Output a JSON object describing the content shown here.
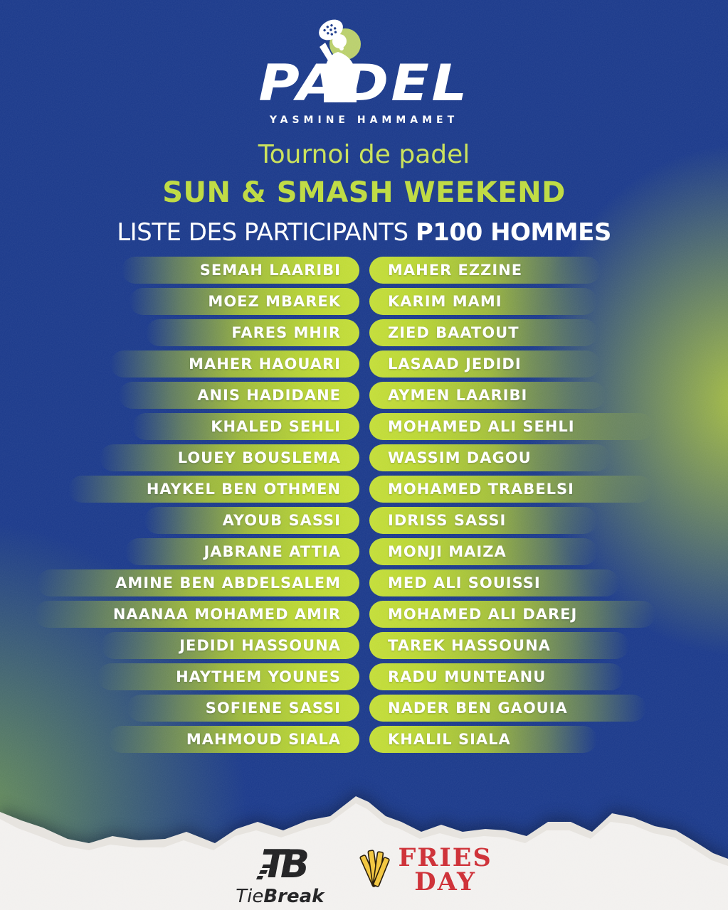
{
  "logo": {
    "brand": "PADEL",
    "location": "YASMINE HAMMAMET"
  },
  "titles": {
    "subtitle": "Tournoi de padel",
    "event": "SUN & SMASH WEEKEND",
    "list_label": "LISTE DES PARTICIPANTS",
    "category": "P100 HOMMES"
  },
  "participants": {
    "left": [
      "SEMAH LAARIBI",
      "MOEZ MBAREK",
      "FARES MHIR",
      "MAHER HAOUARI",
      "ANIS HADIDANE",
      "KHALED SEHLI",
      "LOUEY BOUSLEMA",
      "HAYKEL BEN OTHMEN",
      "AYOUB SASSI",
      "JABRANE ATTIA",
      "AMINE BEN ABDELSALEM",
      "NAANAA MOHAMED AMIR",
      "JEDIDI HASSOUNA",
      "HAYTHEM YOUNES",
      "SOFIENE SASSI",
      "MAHMOUD SIALA"
    ],
    "right": [
      "MAHER EZZINE",
      "KARIM MAMI",
      "ZIED BAATOUT",
      "LASAAD JEDIDI",
      "AYMEN LAARIBI",
      "MOHAMED ALI SEHLI",
      "WASSIM DAGOU",
      "MOHAMED TRABELSI",
      "IDRISS SASSI",
      "MONJI MAIZA",
      "MED ALI SOUISSI",
      "MOHAMED ALI DAREJ",
      "TAREK HASSOUNA",
      "RADU MUNTEANU",
      "NADER BEN GAOUIA",
      "KHALIL SIALA"
    ]
  },
  "sponsors": {
    "tiebreak": {
      "mark": "TB",
      "name_light": "Tie",
      "name_bold": "Break"
    },
    "friesday": {
      "line1": "FRIES",
      "line2": "DAY"
    }
  },
  "colors": {
    "background_navy": "#19388a",
    "pill_green": "#bcd732",
    "title_green": "#c9e156",
    "event_green": "#bdda3e",
    "paper_white": "#f2f0ee",
    "friesday_red": "#cd2b32",
    "fries_yellow": "#f2c53b",
    "logo_circle_green": "#b9cf6b",
    "tiebreak_black": "#1d1d1f"
  }
}
